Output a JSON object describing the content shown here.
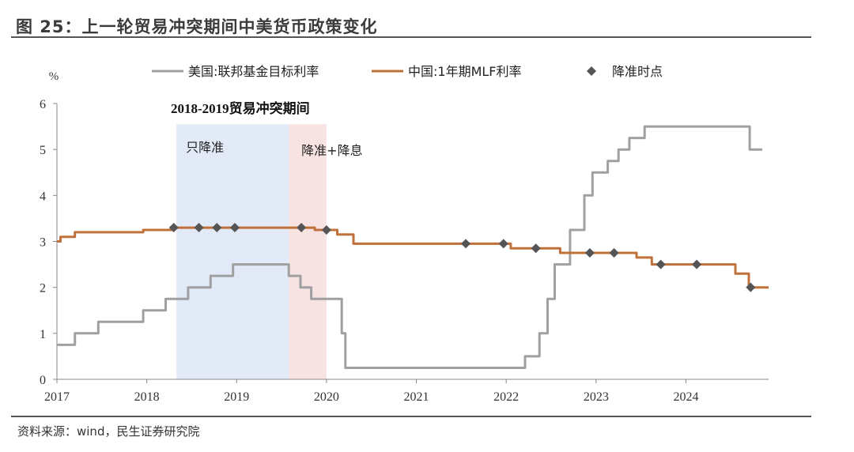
{
  "figure": {
    "title": "图 25：上一轮贸易冲突期间中美货币政策变化",
    "source": "资料来源：wind，民生证券研究院"
  },
  "chart_data": {
    "type": "line",
    "title": "图 25：上一轮贸易冲突期间中美货币政策变化",
    "ylabel": "%",
    "xlabel": "",
    "ylim": [
      0,
      6
    ],
    "yticks": [
      "0",
      "1",
      "2",
      "3",
      "4",
      "5",
      "6"
    ],
    "xlim": [
      2017,
      2024.92
    ],
    "xticks": [
      "2017",
      "2018",
      "2019",
      "2020",
      "2021",
      "2022",
      "2023",
      "2024"
    ],
    "grid": false,
    "legend": "top",
    "series": [
      {
        "name": "美国:联邦基金目标利率",
        "color": "#a0a0a0",
        "step": true,
        "points": [
          [
            2017.0,
            0.75
          ],
          [
            2017.2,
            1.0
          ],
          [
            2017.46,
            1.25
          ],
          [
            2017.96,
            1.5
          ],
          [
            2018.21,
            1.75
          ],
          [
            2018.46,
            2.0
          ],
          [
            2018.71,
            2.25
          ],
          [
            2018.96,
            2.5
          ],
          [
            2019.58,
            2.25
          ],
          [
            2019.71,
            2.0
          ],
          [
            2019.83,
            1.75
          ],
          [
            2020.17,
            1.0
          ],
          [
            2020.21,
            0.25
          ],
          [
            2022.21,
            0.5
          ],
          [
            2022.37,
            1.0
          ],
          [
            2022.46,
            1.75
          ],
          [
            2022.54,
            2.5
          ],
          [
            2022.71,
            3.25
          ],
          [
            2022.87,
            4.0
          ],
          [
            2022.96,
            4.5
          ],
          [
            2023.13,
            4.75
          ],
          [
            2023.25,
            5.0
          ],
          [
            2023.37,
            5.25
          ],
          [
            2023.54,
            5.5
          ],
          [
            2024.71,
            5.0
          ],
          [
            2024.85,
            5.0
          ]
        ]
      },
      {
        "name": "中国:1年期MLF利率",
        "color": "#c0703a",
        "step": true,
        "points": [
          [
            2017.0,
            3.0
          ],
          [
            2017.04,
            3.1
          ],
          [
            2017.2,
            3.2
          ],
          [
            2017.96,
            3.25
          ],
          [
            2018.3,
            3.3
          ],
          [
            2019.87,
            3.25
          ],
          [
            2020.12,
            3.15
          ],
          [
            2020.3,
            2.95
          ],
          [
            2022.05,
            2.85
          ],
          [
            2022.6,
            2.75
          ],
          [
            2023.45,
            2.65
          ],
          [
            2023.62,
            2.5
          ],
          [
            2024.55,
            2.3
          ],
          [
            2024.7,
            2.0
          ],
          [
            2024.92,
            2.0
          ]
        ]
      }
    ],
    "markers": {
      "name": "降准时点",
      "color": "#555555",
      "points": [
        [
          2018.3,
          3.3
        ],
        [
          2018.58,
          3.3
        ],
        [
          2018.78,
          3.3
        ],
        [
          2018.98,
          3.3
        ],
        [
          2019.72,
          3.3
        ],
        [
          2020.0,
          3.25
        ],
        [
          2021.55,
          2.95
        ],
        [
          2021.97,
          2.95
        ],
        [
          2022.33,
          2.85
        ],
        [
          2022.93,
          2.75
        ],
        [
          2023.2,
          2.75
        ],
        [
          2023.72,
          2.5
        ],
        [
          2024.12,
          2.5
        ],
        [
          2024.72,
          2.0
        ]
      ]
    },
    "shaded_regions": [
      {
        "x0": 2018.33,
        "x1": 2019.58,
        "color": "#e3eaf7",
        "label": "只降准"
      },
      {
        "x0": 2019.58,
        "x1": 2020.0,
        "color": "#f8e3e3",
        "label": "降准+降息"
      }
    ],
    "annotations": [
      {
        "text": "2018-2019贸易冲突期间"
      }
    ]
  }
}
